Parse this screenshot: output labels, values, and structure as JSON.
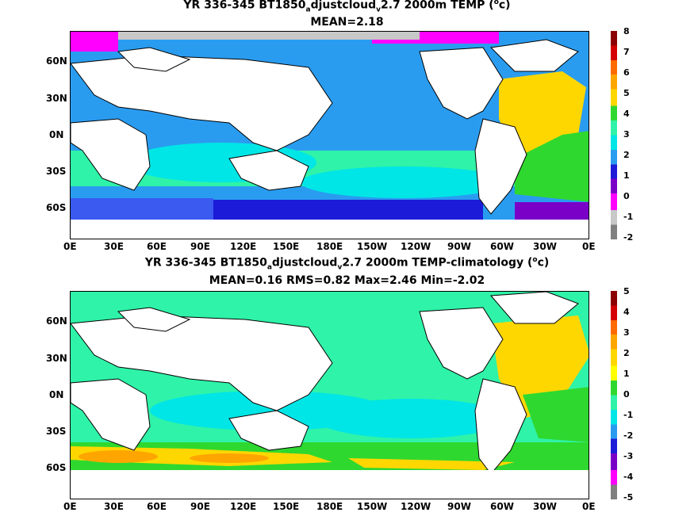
{
  "panels": [
    {
      "title_main": "YR 336-345 BT1850",
      "title_sub": "a",
      "title_mid": "djustcloud",
      "title_sub2": "v",
      "title_tail": "2.7 2000m TEMP (",
      "title_sup": "o",
      "title_end": "c)",
      "stats": "MEAN=2.18",
      "colorbar_labels": [
        "8",
        "7",
        "6",
        "5",
        "4",
        "3",
        "2",
        "1",
        "0",
        "-1",
        "-2"
      ],
      "colorbar_colors": [
        "#8b0000",
        "#d40000",
        "#ff6a00",
        "#ffa500",
        "#ffd700",
        "#2fd82f",
        "#2ff3a8",
        "#00e6e6",
        "#2a9cf0",
        "#1b1bd8",
        "#7a00c8",
        "#ff00ff",
        "#c8c8c8",
        "#808080"
      ]
    },
    {
      "title_main": "YR 336-345 BT1850",
      "title_sub": "a",
      "title_mid": "djustcloud",
      "title_sub2": "v",
      "title_tail": "2.7 2000m TEMP-climatology (",
      "title_sup": "o",
      "title_end": "c)",
      "stats": "MEAN=0.16   RMS=0.82   Max=2.46   Min=-2.02",
      "colorbar_labels": [
        "5",
        "4",
        "3",
        "2",
        "1",
        "0",
        "-1",
        "-2",
        "-3",
        "-4",
        "-5"
      ],
      "colorbar_colors": [
        "#8b0000",
        "#d40000",
        "#ff6a00",
        "#ffa500",
        "#ffd700",
        "#ffff00",
        "#2fd82f",
        "#2ff3a8",
        "#00e6e6",
        "#2a9cf0",
        "#1b1bd8",
        "#7a00c8",
        "#ff00ff",
        "#808080"
      ]
    }
  ],
  "lon_ticks": [
    "0E",
    "30E",
    "60E",
    "90E",
    "120E",
    "150E",
    "180E",
    "150W",
    "120W",
    "90W",
    "60W",
    "30W",
    "0E"
  ],
  "lat_ticks": [
    "60N",
    "30N",
    "0N",
    "30S",
    "60S"
  ]
}
